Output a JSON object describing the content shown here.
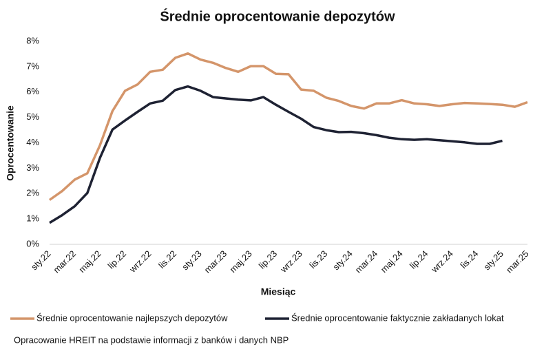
{
  "chart_data": {
    "type": "line",
    "title": "Średnie oprocentowanie depozytów",
    "x_label": "Miesiąc",
    "y_label": "Oprocentowanie",
    "source": "Opracowanie HREIT na podstawie informacji z banków i danych NBP",
    "categories": [
      "sty.22",
      null,
      "mar.22",
      null,
      "maj.22",
      null,
      "lip.22",
      null,
      "wrz.22",
      null,
      "lis.22",
      null,
      "sty.23",
      null,
      "mar.23",
      null,
      "maj.23",
      null,
      "lip.23",
      null,
      "wrz.23",
      null,
      "lis.23",
      null,
      "sty.24",
      null,
      "mar.24",
      null,
      "maj.24",
      null,
      "lip.24",
      null,
      "wrz.24",
      null,
      "lis.24",
      null,
      "sty.25",
      null,
      "mar.25"
    ],
    "series": [
      {
        "name": "Średnie oprocentowanie najlepszych depozytów",
        "color": "#d4956a",
        "values": [
          1.75,
          2.1,
          2.55,
          2.8,
          3.9,
          5.25,
          6.05,
          6.3,
          6.8,
          6.88,
          7.35,
          7.52,
          7.28,
          7.15,
          6.95,
          6.8,
          7.02,
          7.02,
          6.72,
          6.7,
          6.1,
          6.05,
          5.78,
          5.65,
          5.45,
          5.35,
          5.55,
          5.55,
          5.68,
          5.55,
          5.52,
          5.45,
          5.52,
          5.57,
          5.55,
          5.53,
          5.5,
          5.42,
          5.6
        ]
      },
      {
        "name": "Średnie oprocentowanie faktycznie zakładanych lokat",
        "color": "#1e2233",
        "values": [
          0.85,
          1.15,
          1.5,
          2.02,
          3.4,
          4.52,
          4.88,
          5.22,
          5.55,
          5.66,
          6.08,
          6.22,
          6.05,
          5.8,
          5.75,
          5.7,
          5.67,
          5.8,
          5.5,
          5.22,
          4.95,
          4.62,
          4.5,
          4.42,
          4.43,
          4.38,
          4.3,
          4.2,
          4.14,
          4.12,
          4.14,
          4.1,
          4.06,
          4.02,
          3.96,
          3.96,
          4.08,
          null,
          null
        ]
      }
    ],
    "ylim": [
      0,
      8
    ],
    "yticks": [
      {
        "value": 0,
        "label": "0%"
      },
      {
        "value": 1,
        "label": "1%"
      },
      {
        "value": 2,
        "label": "2%"
      },
      {
        "value": 3,
        "label": "3%"
      },
      {
        "value": 4,
        "label": "4%"
      },
      {
        "value": 5,
        "label": "5%"
      },
      {
        "value": 6,
        "label": "6%"
      },
      {
        "value": 7,
        "label": "7%"
      },
      {
        "value": 8,
        "label": "8%"
      }
    ],
    "grid": false,
    "legend": "bottom"
  }
}
